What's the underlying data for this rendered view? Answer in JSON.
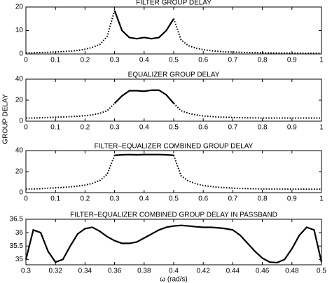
{
  "chart_data": [
    {
      "type": "line",
      "title": "FILTER GROUP DELAY",
      "x": [
        0,
        0.025,
        0.05,
        0.075,
        0.1,
        0.125,
        0.15,
        0.175,
        0.2,
        0.225,
        0.25,
        0.275,
        0.3,
        0.325,
        0.35,
        0.375,
        0.4,
        0.425,
        0.45,
        0.475,
        0.5,
        0.525,
        0.55,
        0.575,
        0.6,
        0.625,
        0.65,
        0.675,
        0.7,
        0.725,
        0.75,
        0.775,
        0.8,
        0.825,
        0.85,
        0.875,
        0.9,
        0.925,
        0.95,
        0.975,
        1
      ],
      "series": [
        {
          "color": "#000000",
          "style": "dotted",
          "values": [
            0.5,
            0.5,
            0.6,
            0.7,
            0.8,
            1,
            1.2,
            1.5,
            2,
            2.8,
            4,
            7.5,
            18.5,
            null,
            null,
            null,
            null,
            null,
            null,
            null,
            15,
            6,
            3.5,
            2.5,
            1.8,
            1.4,
            1.1,
            0.9,
            0.8,
            0.7,
            0.6,
            0.55,
            0.5,
            0.45,
            0.4,
            0.4,
            0.35,
            0.35,
            0.3,
            0.3,
            0.3
          ]
        },
        {
          "color": "#000000",
          "style": "solid",
          "values": [
            null,
            null,
            null,
            null,
            null,
            null,
            null,
            null,
            null,
            null,
            null,
            null,
            18.5,
            10,
            7,
            6.5,
            7,
            6.5,
            7,
            10,
            15,
            null,
            null,
            null,
            null,
            null,
            null,
            null,
            null,
            null,
            null,
            null,
            null,
            null,
            null,
            null,
            null,
            null,
            null,
            null,
            null
          ]
        }
      ],
      "xlim": [
        0,
        1
      ],
      "xticks": [
        0,
        0.1,
        0.2,
        0.3,
        0.4,
        0.5,
        0.6,
        0.7,
        0.8,
        0.9,
        1
      ],
      "ylim": [
        0,
        20
      ],
      "yticks": [
        0,
        10,
        20
      ]
    },
    {
      "type": "line",
      "title": "EQUALIZER GROUP DELAY",
      "ylabel": "GROUP DELAY",
      "x": [
        0,
        0.025,
        0.05,
        0.075,
        0.1,
        0.125,
        0.15,
        0.175,
        0.2,
        0.225,
        0.25,
        0.275,
        0.3,
        0.325,
        0.35,
        0.375,
        0.4,
        0.425,
        0.45,
        0.475,
        0.5,
        0.525,
        0.55,
        0.575,
        0.6,
        0.625,
        0.65,
        0.675,
        0.7,
        0.725,
        0.75,
        0.775,
        0.8,
        0.825,
        0.85,
        0.875,
        0.9,
        0.925,
        0.95,
        0.975,
        1
      ],
      "series": [
        {
          "color": "#000000",
          "style": "dotted",
          "values": [
            3,
            3,
            3.2,
            3.5,
            3.8,
            4,
            4.3,
            4.7,
            5.2,
            6,
            7.5,
            10,
            17,
            null,
            null,
            null,
            null,
            null,
            null,
            null,
            17,
            10,
            7.5,
            6,
            5,
            4.5,
            4,
            3.8,
            3.5,
            3.3,
            3.2,
            3.1,
            3,
            3,
            3,
            3,
            3,
            3,
            3,
            3,
            3
          ]
        },
        {
          "color": "#000000",
          "style": "solid",
          "values": [
            null,
            null,
            null,
            null,
            null,
            null,
            null,
            null,
            null,
            null,
            null,
            null,
            17,
            24,
            29,
            29,
            28.5,
            29.5,
            29.5,
            25,
            17,
            null,
            null,
            null,
            null,
            null,
            null,
            null,
            null,
            null,
            null,
            null,
            null,
            null,
            null,
            null,
            null,
            null,
            null,
            null,
            null
          ]
        }
      ],
      "xlim": [
        0,
        1
      ],
      "xticks": [
        0,
        0.1,
        0.2,
        0.3,
        0.4,
        0.5,
        0.6,
        0.7,
        0.8,
        0.9,
        1
      ],
      "ylim": [
        0,
        40
      ],
      "yticks": [
        0,
        20,
        40
      ]
    },
    {
      "type": "line",
      "title": "FILTER–EQUALIZER COMBINED GROUP DELAY",
      "x": [
        0,
        0.025,
        0.05,
        0.075,
        0.1,
        0.125,
        0.15,
        0.175,
        0.2,
        0.225,
        0.25,
        0.275,
        0.3,
        0.325,
        0.35,
        0.375,
        0.4,
        0.425,
        0.45,
        0.475,
        0.5,
        0.525,
        0.55,
        0.575,
        0.6,
        0.625,
        0.65,
        0.675,
        0.7,
        0.725,
        0.75,
        0.775,
        0.8,
        0.825,
        0.85,
        0.875,
        0.9,
        0.925,
        0.95,
        0.975,
        1
      ],
      "series": [
        {
          "color": "#000000",
          "style": "dotted",
          "values": [
            3.5,
            3.5,
            3.8,
            4.2,
            4.6,
            5,
            5.5,
            6.2,
            7.2,
            8.8,
            11.5,
            17.5,
            35.5,
            null,
            null,
            null,
            null,
            null,
            null,
            null,
            35.5,
            16,
            11,
            8.5,
            6.8,
            5.9,
            5.1,
            4.7,
            4.3,
            4,
            3.8,
            3.65,
            3.5,
            3.45,
            3.4,
            3.4,
            3.35,
            3.35,
            3.3,
            3.3,
            3.3
          ]
        },
        {
          "color": "#000000",
          "style": "solid",
          "values": [
            null,
            null,
            null,
            null,
            null,
            null,
            null,
            null,
            null,
            null,
            null,
            null,
            35.5,
            36,
            36.2,
            36,
            36.2,
            36.2,
            36.2,
            36,
            35.5,
            null,
            null,
            null,
            null,
            null,
            null,
            null,
            null,
            null,
            null,
            null,
            null,
            null,
            null,
            null,
            null,
            null,
            null,
            null,
            null
          ]
        }
      ],
      "xlim": [
        0,
        1
      ],
      "xticks": [
        0,
        0.1,
        0.2,
        0.3,
        0.4,
        0.5,
        0.6,
        0.7,
        0.8,
        0.9,
        1
      ],
      "ylim": [
        0,
        40
      ],
      "yticks": [
        0,
        20,
        40
      ]
    },
    {
      "type": "line",
      "title": "FILTER–EQUALIZER COMBINED GROUP DELAY IN PASSBAND",
      "xlabel": "ω (rad/s)",
      "x": [
        0.3,
        0.305,
        0.31,
        0.315,
        0.32,
        0.325,
        0.33,
        0.335,
        0.34,
        0.345,
        0.35,
        0.355,
        0.36,
        0.365,
        0.37,
        0.375,
        0.38,
        0.385,
        0.39,
        0.395,
        0.4,
        0.405,
        0.41,
        0.415,
        0.42,
        0.425,
        0.43,
        0.435,
        0.44,
        0.445,
        0.45,
        0.455,
        0.46,
        0.465,
        0.47,
        0.475,
        0.48,
        0.485,
        0.49,
        0.495,
        0.5
      ],
      "series": [
        {
          "color": "#000000",
          "style": "solid",
          "values": [
            35.0,
            36.1,
            36.0,
            35.3,
            34.9,
            35.0,
            35.5,
            35.95,
            36.15,
            36.2,
            36.05,
            35.85,
            35.7,
            35.6,
            35.6,
            35.65,
            35.8,
            35.95,
            36.1,
            36.2,
            36.25,
            36.27,
            36.25,
            36.22,
            36.2,
            36.2,
            36.18,
            36.15,
            36.1,
            35.9,
            35.6,
            35.3,
            35.05,
            34.9,
            34.88,
            35.0,
            35.4,
            35.9,
            36.2,
            36.1,
            34.9
          ]
        }
      ],
      "xlim": [
        0.3,
        0.5
      ],
      "xticks": [
        0.3,
        0.32,
        0.34,
        0.36,
        0.38,
        0.4,
        0.42,
        0.44,
        0.46,
        0.48,
        0.5
      ],
      "ylim": [
        34.8,
        36.5
      ],
      "yticks": [
        35,
        35.5,
        36,
        36.5
      ]
    }
  ]
}
